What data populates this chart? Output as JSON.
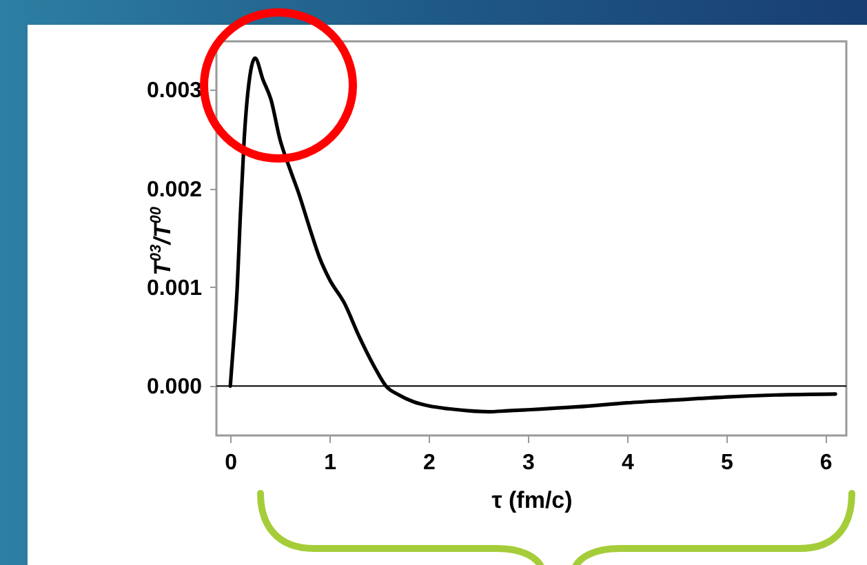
{
  "chart_data": {
    "type": "line",
    "xlabel": "τ (fm/c)",
    "ylabel": "T$^{03}$/T$^{00}$",
    "x": [
      0,
      0.03,
      0.07,
      0.1,
      0.14,
      0.18,
      0.25,
      0.33,
      0.41,
      0.5,
      0.6,
      0.69,
      0.8,
      0.9,
      1.0,
      1.15,
      1.3,
      1.45,
      1.57,
      1.7,
      1.85,
      2.0,
      2.2,
      2.4,
      2.6,
      2.8,
      3.0,
      3.5,
      4.0,
      4.5,
      5.0,
      5.5,
      6.1
    ],
    "series": [
      {
        "color": "#000000",
        "values": [
          0,
          0.0004,
          0.001,
          0.0017,
          0.0025,
          0.003,
          0.00332,
          0.0031,
          0.0029,
          0.0025,
          0.0022,
          0.00195,
          0.0016,
          0.0013,
          0.00108,
          0.00084,
          0.0005,
          0.0002,
          0,
          -9e-05,
          -0.00016,
          -0.0002,
          -0.00023,
          -0.00025,
          -0.00026,
          -0.00025,
          -0.00024,
          -0.00021,
          -0.00017,
          -0.00014,
          -0.00011,
          -9e-05,
          -8e-05
        ]
      }
    ],
    "xlim": [
      -0.14,
      6.21
    ],
    "ylim": [
      -0.0005,
      0.00349
    ],
    "xticks": [
      0,
      1,
      2,
      3,
      4,
      5,
      6
    ],
    "yticks": [
      {
        "value": 0,
        "label": "0.000"
      },
      {
        "value": 0.001,
        "label": "0.001"
      },
      {
        "value": 0.002,
        "label": "0.002"
      },
      {
        "value": 0.003,
        "label": "0.003"
      }
    ],
    "ref_lines": [
      {
        "axis": "y",
        "value": 0,
        "color": "#000000"
      }
    ],
    "grid": false,
    "marker": "none",
    "line_style": "solid"
  }
}
